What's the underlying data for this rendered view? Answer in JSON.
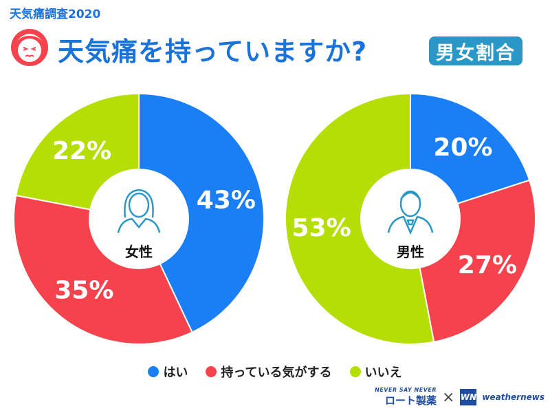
{
  "header": {
    "survey_tag": "天気痛調査2020",
    "title": "天気痛を持っていますか?",
    "badge": "男女割合"
  },
  "colors": {
    "yes": "#1a7ef5",
    "has_some": "#f5424c",
    "no": "#b4de06",
    "title_blue": "#1a73d9",
    "badge_bg": "#2a97c6"
  },
  "chart_data": [
    {
      "type": "pie",
      "center_label": "女性",
      "center_icon": "woman-icon",
      "labels": [
        "はい",
        "持っている気がする",
        "いいえ"
      ],
      "values": [
        43,
        35,
        22
      ],
      "value_labels": [
        "43%",
        "35%",
        "22%"
      ]
    },
    {
      "type": "pie",
      "center_label": "男性",
      "center_icon": "man-icon",
      "labels": [
        "はい",
        "持っている気がする",
        "いいえ"
      ],
      "values": [
        20,
        27,
        53
      ],
      "value_labels": [
        "20%",
        "27%",
        "53%"
      ]
    }
  ],
  "legend": [
    {
      "label": "はい",
      "color": "#1a7ef5"
    },
    {
      "label": "持っている気がする",
      "color": "#f5424c"
    },
    {
      "label": "いいえ",
      "color": "#b4de06"
    }
  ],
  "logos": {
    "rohto_tagline": "NEVER SAY NEVER",
    "rohto_name": "ロート製薬",
    "cross": "×",
    "wn_mark": "WN",
    "weathernews": "weathernews"
  }
}
